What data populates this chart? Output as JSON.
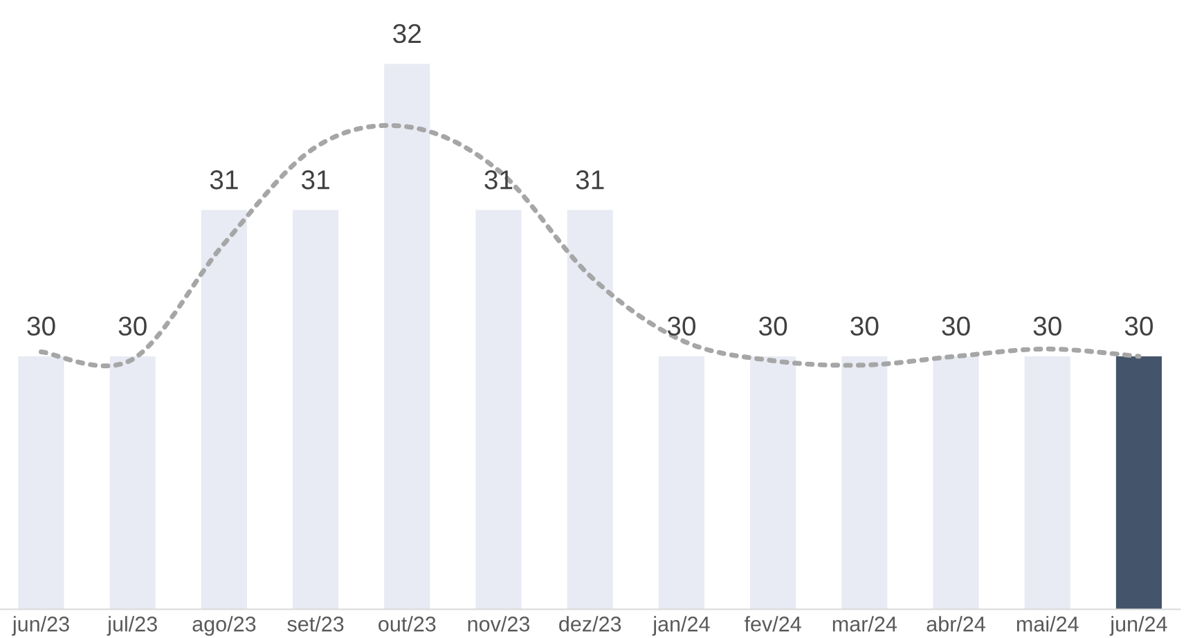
{
  "chart_data": {
    "type": "bar",
    "categories": [
      "jun/23",
      "jul/23",
      "ago/23",
      "set/23",
      "out/23",
      "nov/23",
      "dez/23",
      "jan/24",
      "fev/24",
      "mar/24",
      "abr/24",
      "mai/24",
      "jun/24"
    ],
    "series": [
      {
        "values": [
          30,
          30,
          31,
          31,
          32,
          31,
          31,
          30,
          30,
          30,
          30,
          30,
          30
        ],
        "value_labels": [
          "30",
          "30",
          "31",
          "31",
          "32",
          "31",
          "31",
          "30",
          "30",
          "30",
          "30",
          "30",
          "30"
        ],
        "colors": [
          "#e8eaf4",
          "#e8eaf4",
          "#e8eaf4",
          "#e8eaf4",
          "#e8eaf4",
          "#e8eaf4",
          "#e8eaf4",
          "#e8eaf4",
          "#e8eaf4",
          "#e8eaf4",
          "#e8eaf4",
          "#e8eaf4",
          "#44546a"
        ]
      },
      {
        "type": "line",
        "color": "#a6a6a6",
        "line_style": "dotted",
        "values": [
          30.03,
          29.98,
          30.77,
          31.43,
          31.57,
          31.27,
          30.55,
          30.11,
          29.97,
          29.94,
          30.0,
          30.05,
          30.0
        ]
      }
    ],
    "ylim": [
      28.27,
      32
    ],
    "tick_labels": "x"
  }
}
